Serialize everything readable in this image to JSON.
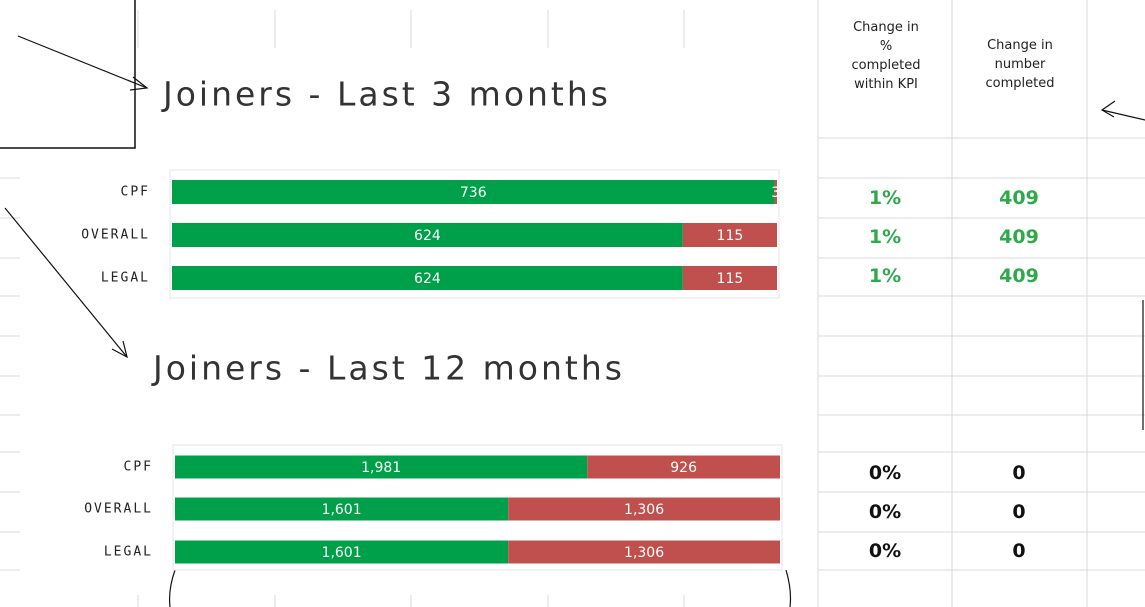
{
  "chart_data": [
    {
      "type": "bar",
      "orientation": "horizontal",
      "stacked": true,
      "title": "Joiners - Last 3 months",
      "categories": [
        "CPF",
        "OVERALL",
        "LEGAL"
      ],
      "series": [
        {
          "color": "#00a04a",
          "values": [
            736,
            624,
            624
          ]
        },
        {
          "color": "#c0504d",
          "values": [
            3,
            115,
            115
          ]
        }
      ],
      "xlim": [
        0,
        739
      ]
    },
    {
      "type": "bar",
      "orientation": "horizontal",
      "stacked": true,
      "title": "Joiners - Last 12 months",
      "categories": [
        "CPF",
        "OVERALL",
        "LEGAL"
      ],
      "series": [
        {
          "color": "#00a04a",
          "values": [
            1981,
            1601,
            1601
          ],
          "value_labels": [
            "1,981",
            "1,601",
            "1,601"
          ]
        },
        {
          "color": "#c0504d",
          "values": [
            926,
            1306,
            1306
          ],
          "value_labels": [
            "926",
            "1,306",
            "1,306"
          ]
        }
      ],
      "xlim": [
        0,
        2907
      ]
    }
  ],
  "table": {
    "header": [
      "Change in % completed within KPI",
      "Change in number completed"
    ],
    "rows": [
      [
        "1%",
        "409"
      ],
      [
        "1%",
        "409"
      ],
      [
        "1%",
        "409"
      ],
      [
        "0%",
        "0"
      ],
      [
        "0%",
        "0"
      ],
      [
        "0%",
        "0"
      ]
    ],
    "row_colors": [
      "#2eaa4a",
      "#2eaa4a",
      "#2eaa4a",
      "#111111",
      "#111111",
      "#111111"
    ]
  }
}
